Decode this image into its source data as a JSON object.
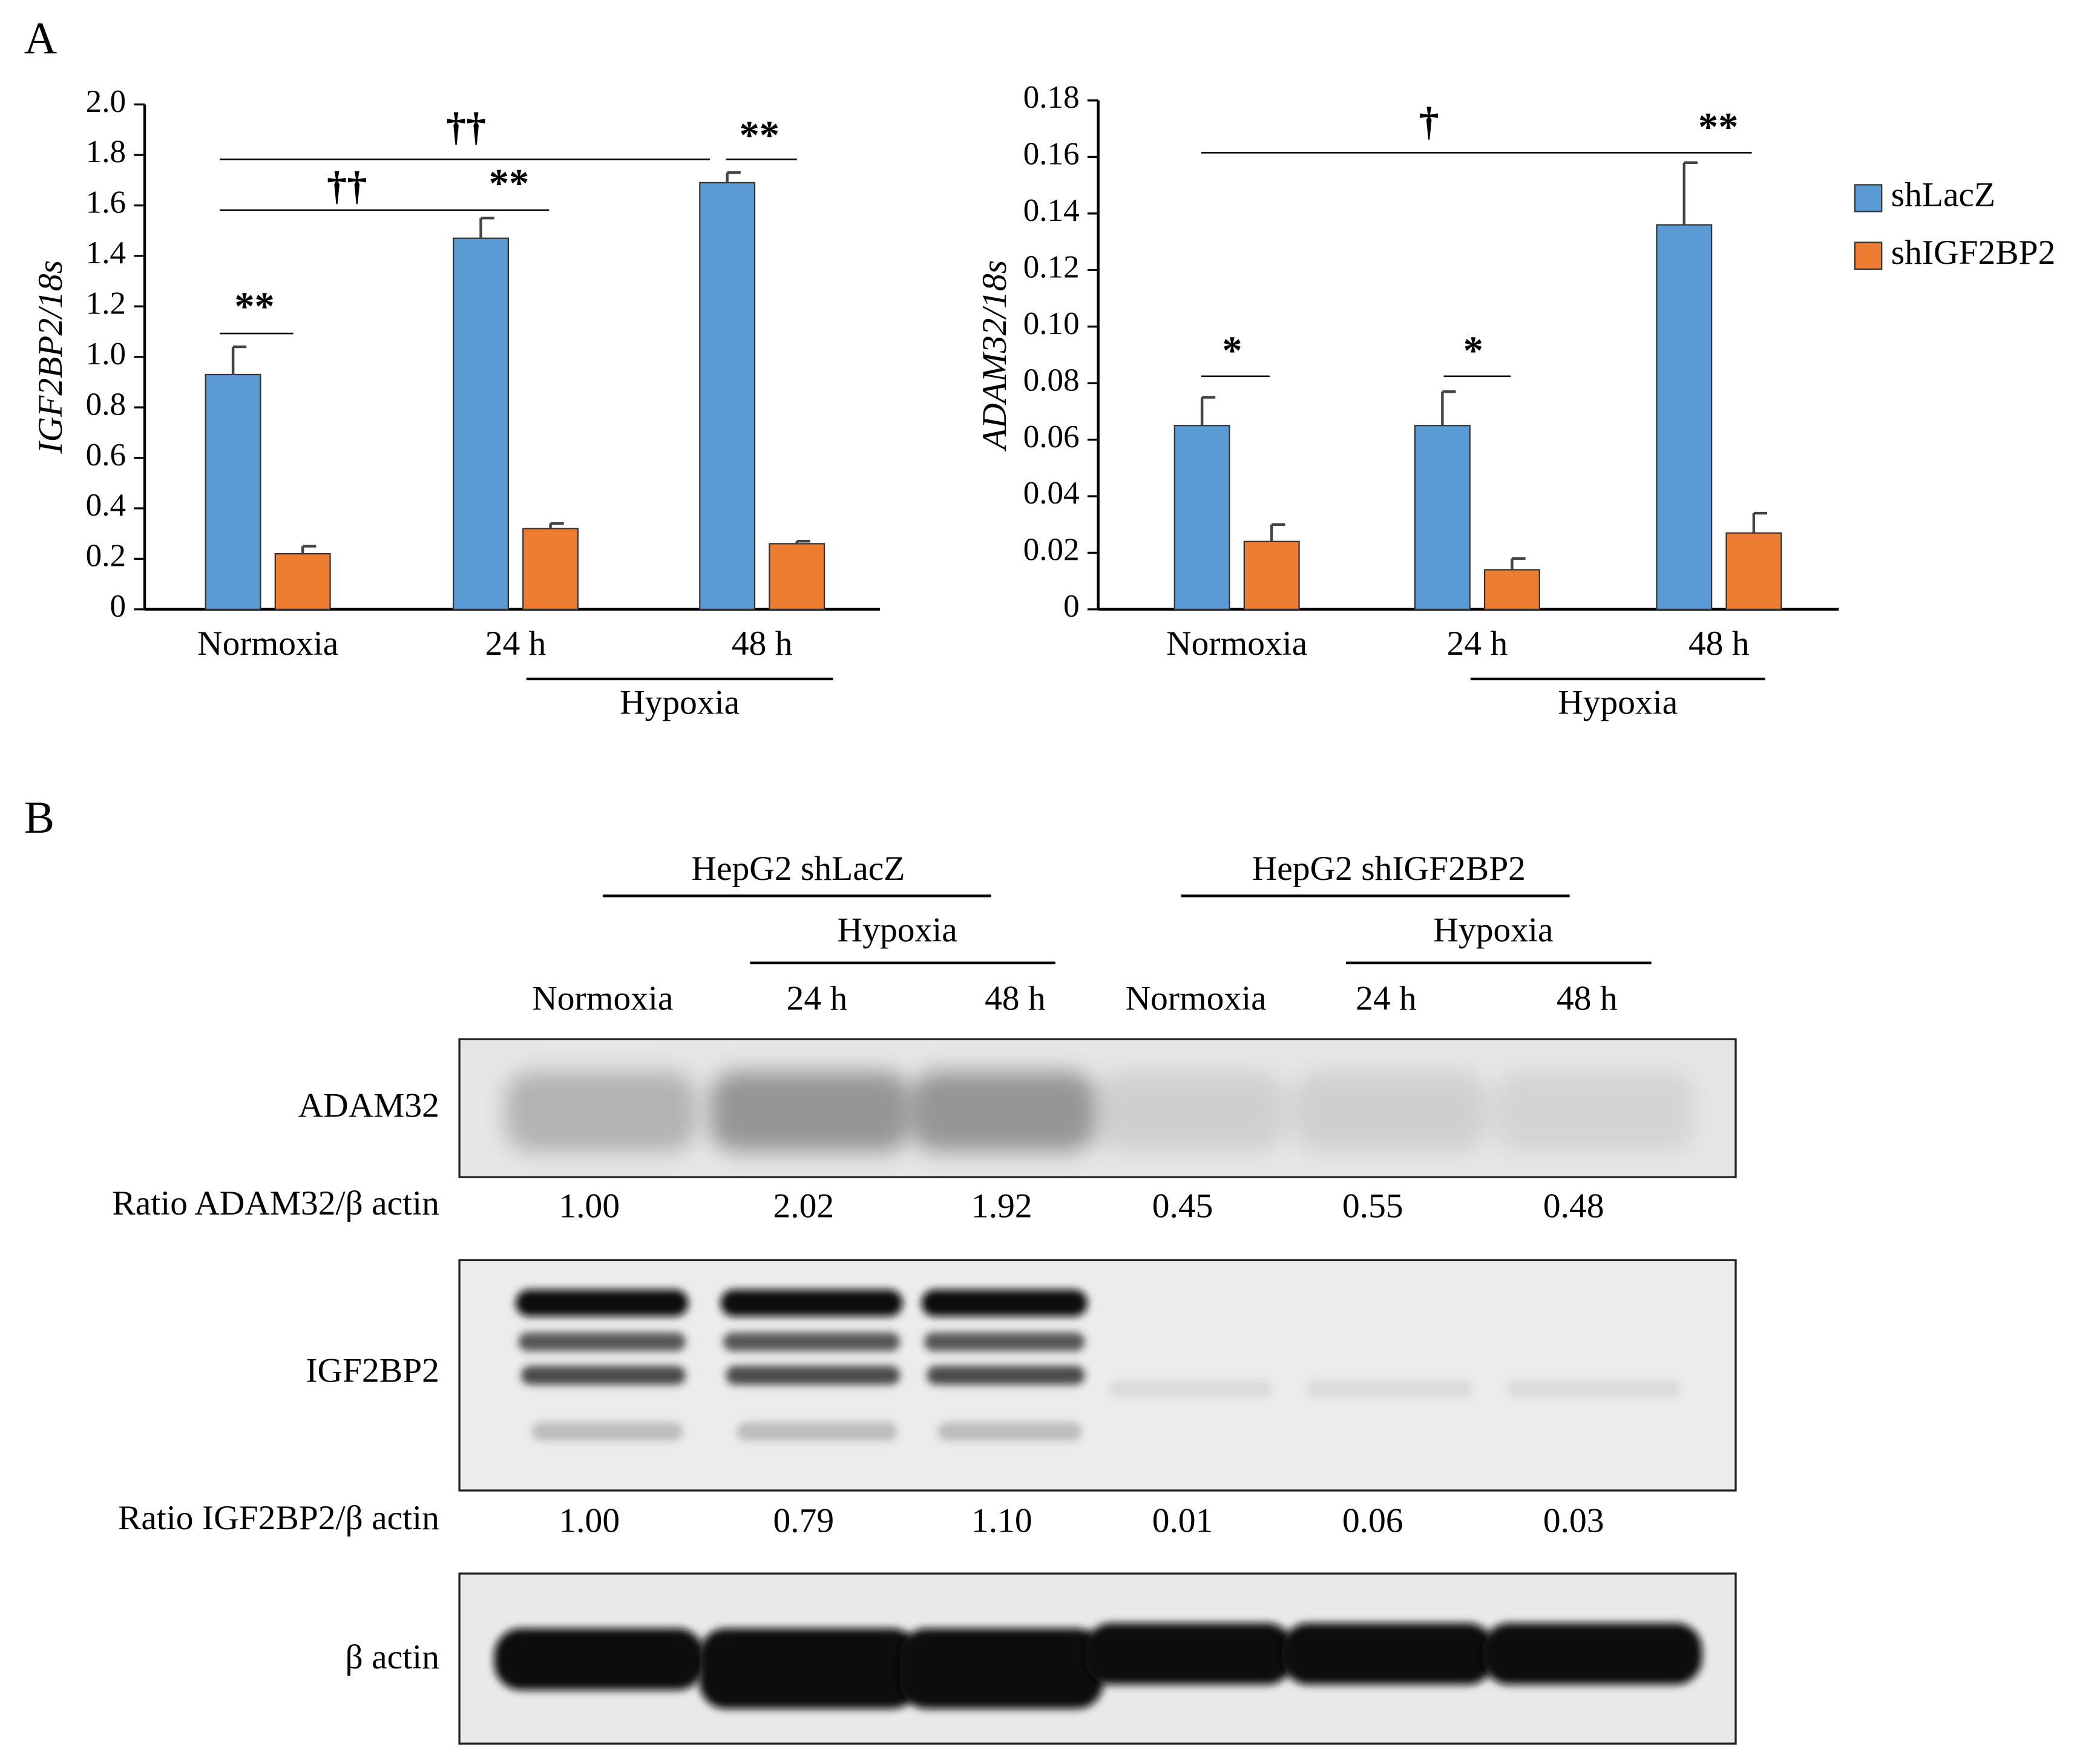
{
  "panel_labels": [
    "A",
    "B"
  ],
  "chart_data": [
    {
      "type": "bar",
      "ylabel": "IGF2BP2/18s",
      "categories": [
        "Normoxia",
        "24 h",
        "48 h"
      ],
      "group_label": "Hypoxia",
      "ylim": [
        0,
        2
      ],
      "yticks": [
        0,
        0.2,
        0.4,
        0.6,
        0.8,
        {
          "value": 1,
          "label": "1.0"
        },
        1.2,
        1.4,
        1.6,
        1.8,
        {
          "value": 2,
          "label": "2.0"
        }
      ],
      "series": [
        {
          "color": "#5b9bd5",
          "values": [
            0.93,
            1.47,
            1.69
          ],
          "errors": [
            0.11,
            0.08,
            0.04
          ]
        },
        {
          "color": "#ed7d31",
          "values": [
            0.22,
            0.32,
            0.26
          ],
          "errors": [
            0.03,
            0.02,
            0.01
          ]
        }
      ],
      "annotations": [
        "**",
        "††",
        "**",
        "††",
        "**"
      ],
      "legend": false
    },
    {
      "type": "bar",
      "ylabel": "ADAM32/18s",
      "categories": [
        "Normoxia",
        "24 h",
        "48 h"
      ],
      "group_label": "Hypoxia",
      "ylim": [
        0,
        0.18
      ],
      "yticks": [
        0,
        0.02,
        0.04,
        0.06,
        0.08,
        {
          "value": 0.1,
          "label": "0.10"
        },
        0.12,
        0.14,
        0.16,
        0.18
      ],
      "series": [
        {
          "name": "shLacZ",
          "color": "#5b9bd5",
          "values": [
            0.065,
            0.065,
            0.136
          ],
          "errors": [
            0.01,
            0.012,
            0.022
          ]
        },
        {
          "name": "shIGF2BP2",
          "color": "#ed7d31",
          "values": [
            0.024,
            0.014,
            0.027
          ],
          "errors": [
            0.006,
            0.004,
            0.007
          ]
        }
      ],
      "annotations": [
        "*",
        "*",
        "†",
        "**"
      ],
      "legend": true,
      "legend_position": "right"
    }
  ],
  "blot": {
    "groups": [
      {
        "label": "HepG2 shLacZ",
        "sublabel": "Hypoxia"
      },
      {
        "label": "HepG2 shIGF2BP2",
        "sublabel": "Hypoxia"
      }
    ],
    "lanes": [
      "Normoxia",
      "24 h",
      "48 h",
      "Normoxia",
      "24 h",
      "48 h"
    ],
    "rows": [
      {
        "label": "ADAM32",
        "ratio_label": "Ratio ADAM32/β actin",
        "ratios": [
          "1.00",
          "2.02",
          "1.92",
          "0.45",
          "0.55",
          "0.48"
        ]
      },
      {
        "label": "IGF2BP2",
        "ratio_label": "Ratio IGF2BP2/β actin",
        "ratios": [
          "1.00",
          "0.79",
          "1.10",
          "0.01",
          "0.06",
          "0.03"
        ]
      },
      {
        "label": "β actin"
      }
    ]
  }
}
